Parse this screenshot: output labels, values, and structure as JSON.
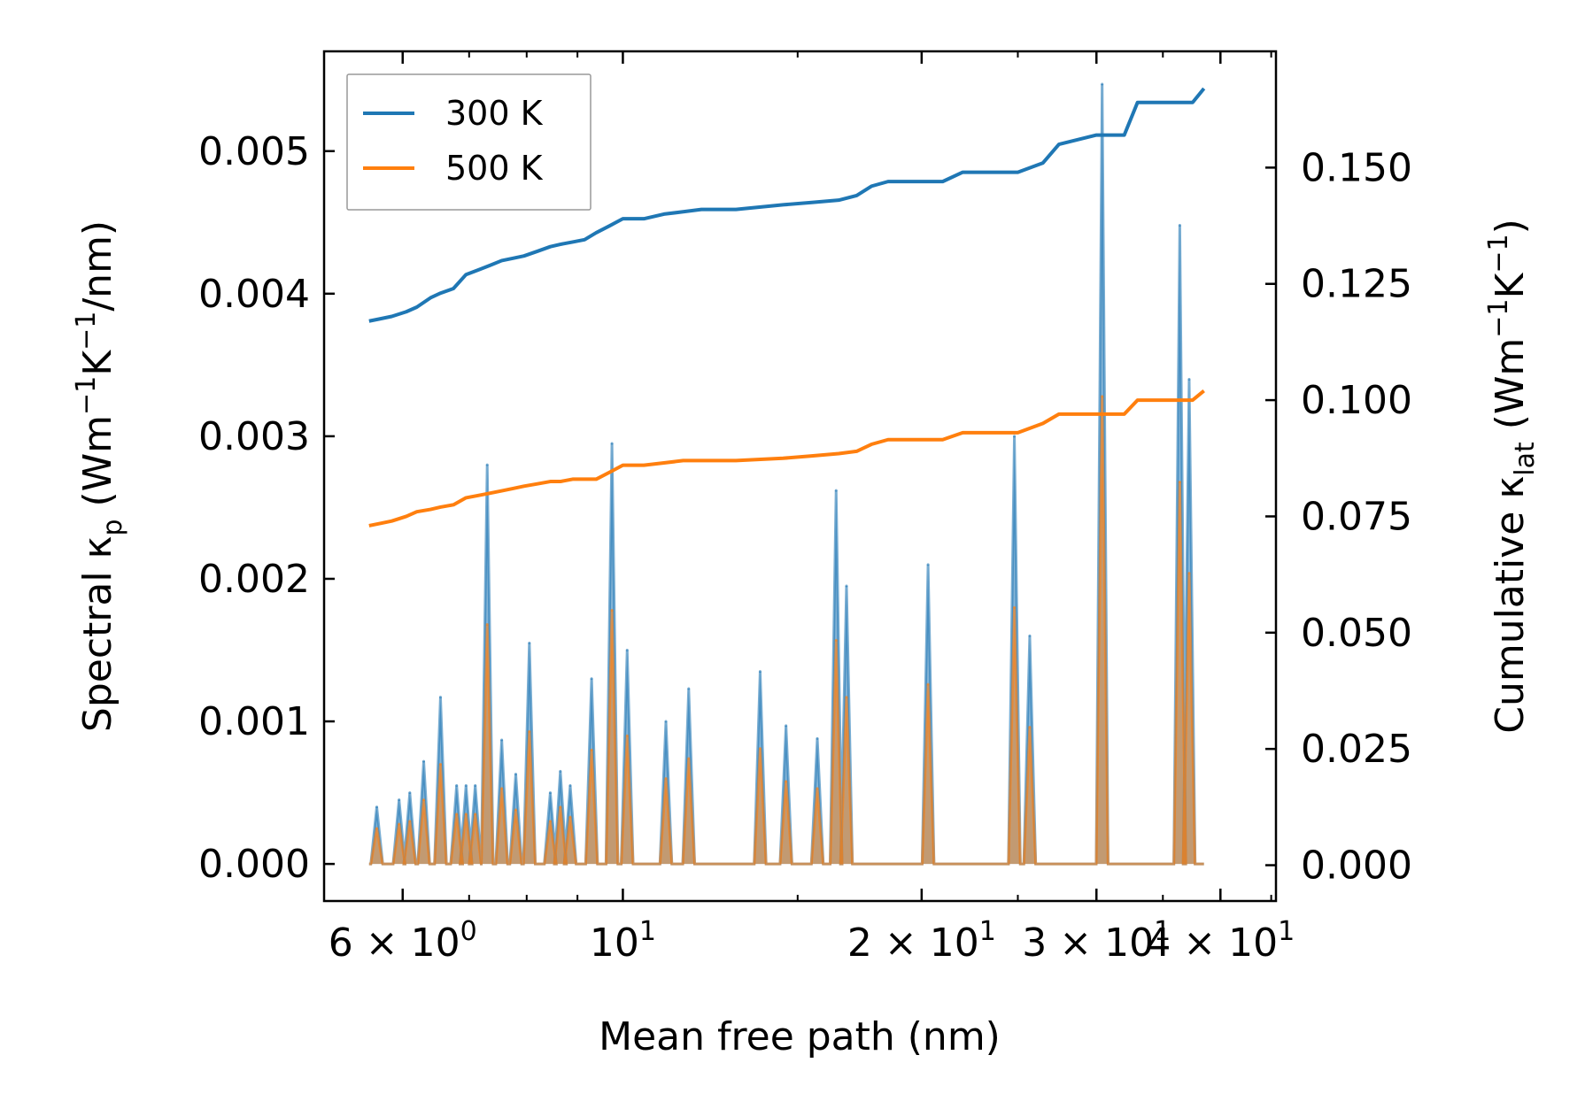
{
  "chart_data": {
    "type": "line",
    "xlabel": "Mean free path (nm)",
    "xscale": "log",
    "xlim": [
      5.0,
      45.5
    ],
    "x_ticks": [
      {
        "value": 6,
        "base": "6 × 10",
        "exp": "0"
      },
      {
        "value": 10,
        "base": "10",
        "exp": "1"
      },
      {
        "value": 20,
        "base": "2 × 10",
        "exp": "1"
      },
      {
        "value": 30,
        "base": "3 × 10",
        "exp": "1"
      },
      {
        "value": 40,
        "base": "4 × 10",
        "exp": "1"
      }
    ],
    "y_left": {
      "label_main": "Spectral κ",
      "label_sub": "p",
      "label_unit_pre": " (Wm",
      "label_sup1": "−1",
      "label_mid": "K",
      "label_sup2": "−1",
      "label_tail": "/nm)",
      "lim": [
        -0.00026,
        0.0057
      ],
      "ticks": [
        "0.000",
        "0.001",
        "0.002",
        "0.003",
        "0.004",
        "0.005"
      ]
    },
    "y_right": {
      "label_main": "Cumulative κ",
      "label_sub": "lat",
      "label_unit_pre": " (Wm",
      "label_sup1": "−1",
      "label_mid": "K",
      "label_sup2": "−1",
      "label_tail": ")",
      "lim": [
        -0.0077,
        0.175
      ],
      "ticks": [
        "0.000",
        "0.025",
        "0.050",
        "0.075",
        "0.100",
        "0.125",
        "0.150"
      ]
    },
    "legend": {
      "position": "top-left"
    },
    "series": [
      {
        "name": "300 K",
        "color": "#1f77b4",
        "axis": "right",
        "x": [
          5.55,
          5.7,
          5.85,
          6.05,
          6.2,
          6.4,
          6.55,
          6.75,
          6.95,
          7.15,
          7.35,
          7.55,
          7.75,
          7.95,
          8.2,
          8.45,
          8.65,
          8.9,
          9.15,
          9.4,
          9.7,
          10.0,
          10.5,
          11.0,
          11.5,
          12.0,
          13.0,
          14.5,
          15.5,
          16.5,
          17.2,
          17.8,
          18.5,
          19.5,
          21.0,
          22.0,
          25.0,
          26.5,
          27.5,
          30.0,
          32.0,
          33.0,
          35.0,
          37.5,
          38.5
        ],
        "y": [
          0.117,
          0.1175,
          0.118,
          0.119,
          0.12,
          0.122,
          0.123,
          0.124,
          0.127,
          0.128,
          0.129,
          0.13,
          0.1305,
          0.131,
          0.132,
          0.133,
          0.1335,
          0.134,
          0.1345,
          0.136,
          0.1375,
          0.139,
          0.139,
          0.14,
          0.1405,
          0.141,
          0.141,
          0.142,
          0.1425,
          0.143,
          0.144,
          0.146,
          0.147,
          0.147,
          0.147,
          0.149,
          0.149,
          0.151,
          0.155,
          0.157,
          0.157,
          0.164,
          0.164,
          0.164,
          0.167
        ]
      },
      {
        "name": "500 K",
        "color": "#ff7f0e",
        "axis": "right",
        "x": [
          5.55,
          5.7,
          5.85,
          6.05,
          6.2,
          6.4,
          6.55,
          6.75,
          6.95,
          7.15,
          7.35,
          7.55,
          7.75,
          7.95,
          8.2,
          8.45,
          8.65,
          8.9,
          9.15,
          9.4,
          9.7,
          10.0,
          10.5,
          11.0,
          11.5,
          12.0,
          13.0,
          14.5,
          15.5,
          16.5,
          17.2,
          17.8,
          18.5,
          19.5,
          21.0,
          22.0,
          25.0,
          26.5,
          27.5,
          30.0,
          32.0,
          33.0,
          35.0,
          37.5,
          38.5
        ],
        "y": [
          0.073,
          0.0735,
          0.074,
          0.075,
          0.076,
          0.0765,
          0.077,
          0.0775,
          0.079,
          0.0795,
          0.08,
          0.0805,
          0.081,
          0.0815,
          0.082,
          0.0825,
          0.0825,
          0.083,
          0.083,
          0.083,
          0.0845,
          0.086,
          0.086,
          0.0865,
          0.087,
          0.087,
          0.087,
          0.0875,
          0.088,
          0.0885,
          0.089,
          0.0905,
          0.0915,
          0.0915,
          0.0915,
          0.093,
          0.093,
          0.095,
          0.097,
          0.097,
          0.097,
          0.1,
          0.1,
          0.1,
          0.102
        ]
      }
    ],
    "spectral": [
      {
        "name": "300 K",
        "color": "#1f77b4",
        "axis": "left",
        "peaks": [
          {
            "x": 5.65,
            "y": 0.0004
          },
          {
            "x": 5.95,
            "y": 0.00045
          },
          {
            "x": 6.1,
            "y": 0.0005
          },
          {
            "x": 6.3,
            "y": 0.00072
          },
          {
            "x": 6.55,
            "y": 0.00117
          },
          {
            "x": 6.8,
            "y": 0.00055
          },
          {
            "x": 6.95,
            "y": 0.00055
          },
          {
            "x": 7.1,
            "y": 0.00055
          },
          {
            "x": 7.3,
            "y": 0.0028
          },
          {
            "x": 7.55,
            "y": 0.00087
          },
          {
            "x": 7.8,
            "y": 0.00063
          },
          {
            "x": 8.05,
            "y": 0.00155
          },
          {
            "x": 8.45,
            "y": 0.0005
          },
          {
            "x": 8.65,
            "y": 0.00065
          },
          {
            "x": 8.85,
            "y": 0.00055
          },
          {
            "x": 9.3,
            "y": 0.0013
          },
          {
            "x": 9.75,
            "y": 0.00295
          },
          {
            "x": 10.1,
            "y": 0.0015
          },
          {
            "x": 11.05,
            "y": 0.001
          },
          {
            "x": 11.65,
            "y": 0.00123
          },
          {
            "x": 13.75,
            "y": 0.00135
          },
          {
            "x": 14.6,
            "y": 0.00097
          },
          {
            "x": 15.7,
            "y": 0.00088
          },
          {
            "x": 16.4,
            "y": 0.00262
          },
          {
            "x": 16.8,
            "y": 0.00195
          },
          {
            "x": 20.3,
            "y": 0.0021
          },
          {
            "x": 24.8,
            "y": 0.003
          },
          {
            "x": 25.7,
            "y": 0.0016
          },
          {
            "x": 30.4,
            "y": 0.00547
          },
          {
            "x": 36.4,
            "y": 0.00448
          },
          {
            "x": 37.2,
            "y": 0.0034
          }
        ]
      },
      {
        "name": "500 K",
        "color": "#ff7f0e",
        "axis": "left",
        "peaks": [
          {
            "x": 5.65,
            "y": 0.00025
          },
          {
            "x": 5.95,
            "y": 0.00028
          },
          {
            "x": 6.1,
            "y": 0.0003
          },
          {
            "x": 6.3,
            "y": 0.00045
          },
          {
            "x": 6.55,
            "y": 0.0007
          },
          {
            "x": 6.8,
            "y": 0.00035
          },
          {
            "x": 6.95,
            "y": 0.00035
          },
          {
            "x": 7.1,
            "y": 0.00035
          },
          {
            "x": 7.3,
            "y": 0.00168
          },
          {
            "x": 7.55,
            "y": 0.00053
          },
          {
            "x": 7.8,
            "y": 0.00038
          },
          {
            "x": 8.05,
            "y": 0.00093
          },
          {
            "x": 8.45,
            "y": 0.0003
          },
          {
            "x": 8.65,
            "y": 0.0004
          },
          {
            "x": 8.85,
            "y": 0.00033
          },
          {
            "x": 9.3,
            "y": 0.0008
          },
          {
            "x": 9.75,
            "y": 0.00178
          },
          {
            "x": 10.1,
            "y": 0.0009
          },
          {
            "x": 11.05,
            "y": 0.0006
          },
          {
            "x": 11.65,
            "y": 0.00074
          },
          {
            "x": 13.75,
            "y": 0.00081
          },
          {
            "x": 14.6,
            "y": 0.00058
          },
          {
            "x": 15.7,
            "y": 0.00053
          },
          {
            "x": 16.4,
            "y": 0.00157
          },
          {
            "x": 16.8,
            "y": 0.00117
          },
          {
            "x": 20.3,
            "y": 0.00126
          },
          {
            "x": 24.8,
            "y": 0.0018
          },
          {
            "x": 25.7,
            "y": 0.00096
          },
          {
            "x": 30.4,
            "y": 0.00328
          },
          {
            "x": 36.4,
            "y": 0.00268
          },
          {
            "x": 37.2,
            "y": 0.00204
          }
        ]
      }
    ]
  }
}
